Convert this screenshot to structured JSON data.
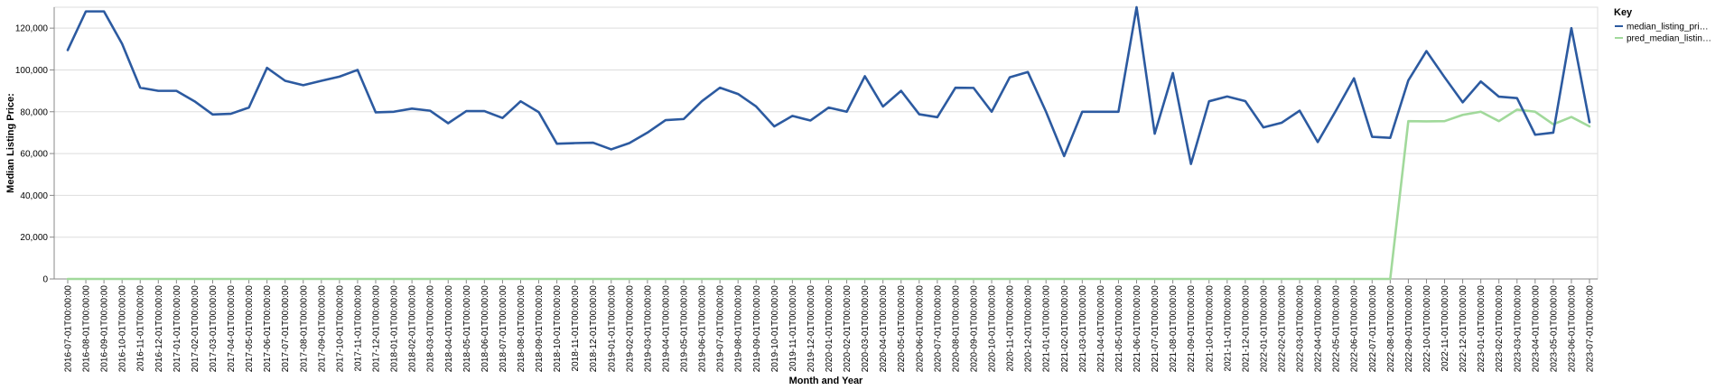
{
  "chart_data": {
    "type": "line",
    "xlabel": "Month and Year",
    "ylabel": "Median Listing Price:",
    "ylim": [
      0,
      130000
    ],
    "yticks": [
      0,
      20000,
      40000,
      60000,
      80000,
      100000,
      120000
    ],
    "ytick_labels": [
      "0",
      "20,000",
      "40,000",
      "60,000",
      "80,000",
      "100,000",
      "120,000"
    ],
    "grid": true,
    "legend_position": "top-right",
    "legend_title": "Key",
    "x": [
      "2016-07-01T00:00:00",
      "2016-08-01T00:00:00",
      "2016-09-01T00:00:00",
      "2016-10-01T00:00:00",
      "2016-11-01T00:00:00",
      "2016-12-01T00:00:00",
      "2017-01-01T00:00:00",
      "2017-02-01T00:00:00",
      "2017-03-01T00:00:00",
      "2017-04-01T00:00:00",
      "2017-05-01T00:00:00",
      "2017-06-01T00:00:00",
      "2017-07-01T00:00:00",
      "2017-08-01T00:00:00",
      "2017-09-01T00:00:00",
      "2017-10-01T00:00:00",
      "2017-11-01T00:00:00",
      "2017-12-01T00:00:00",
      "2018-01-01T00:00:00",
      "2018-02-01T00:00:00",
      "2018-03-01T00:00:00",
      "2018-04-01T00:00:00",
      "2018-05-01T00:00:00",
      "2018-06-01T00:00:00",
      "2018-07-01T00:00:00",
      "2018-08-01T00:00:00",
      "2018-09-01T00:00:00",
      "2018-10-01T00:00:00",
      "2018-11-01T00:00:00",
      "2018-12-01T00:00:00",
      "2019-01-01T00:00:00",
      "2019-02-01T00:00:00",
      "2019-03-01T00:00:00",
      "2019-04-01T00:00:00",
      "2019-05-01T00:00:00",
      "2019-06-01T00:00:00",
      "2019-07-01T00:00:00",
      "2019-08-01T00:00:00",
      "2019-09-01T00:00:00",
      "2019-10-01T00:00:00",
      "2019-11-01T00:00:00",
      "2019-12-01T00:00:00",
      "2020-01-01T00:00:00",
      "2020-02-01T00:00:00",
      "2020-03-01T00:00:00",
      "2020-04-01T00:00:00",
      "2020-05-01T00:00:00",
      "2020-06-01T00:00:00",
      "2020-07-01T00:00:00",
      "2020-08-01T00:00:00",
      "2020-09-01T00:00:00",
      "2020-10-01T00:00:00",
      "2020-11-01T00:00:00",
      "2020-12-01T00:00:00",
      "2021-01-01T00:00:00",
      "2021-02-01T00:00:00",
      "2021-03-01T00:00:00",
      "2021-04-01T00:00:00",
      "2021-05-01T00:00:00",
      "2021-06-01T00:00:00",
      "2021-07-01T00:00:00",
      "2021-08-01T00:00:00",
      "2021-09-01T00:00:00",
      "2021-10-01T00:00:00",
      "2021-11-01T00:00:00",
      "2021-12-01T00:00:00",
      "2022-01-01T00:00:00",
      "2022-02-01T00:00:00",
      "2022-03-01T00:00:00",
      "2022-04-01T00:00:00",
      "2022-05-01T00:00:00",
      "2022-06-01T00:00:00",
      "2022-07-01T00:00:00",
      "2022-08-01T00:00:00",
      "2022-09-01T00:00:00",
      "2022-10-01T00:00:00",
      "2022-11-01T00:00:00",
      "2022-12-01T00:00:00",
      "2023-01-01T00:00:00",
      "2023-02-01T00:00:00",
      "2023-03-01T00:00:00",
      "2023-04-01T00:00:00",
      "2023-05-01T00:00:00",
      "2023-06-01T00:00:00",
      "2023-07-01T00:00:00"
    ],
    "series": [
      {
        "name": "median_listing_pri…",
        "color": "#2c5aa0",
        "values": [
          109500,
          128000,
          128000,
          112500,
          91500,
          90000,
          90000,
          85000,
          78700,
          79000,
          82000,
          101000,
          94800,
          92700,
          94800,
          96800,
          100000,
          79700,
          80000,
          81500,
          80500,
          74500,
          80300,
          80300,
          77000,
          85000,
          79800,
          64700,
          65000,
          65200,
          62000,
          65000,
          70000,
          76000,
          76500,
          85000,
          91500,
          88500,
          82500,
          73000,
          78000,
          75800,
          82000,
          80000,
          97000,
          82500,
          90000,
          78800,
          77400,
          91500,
          91400,
          80000,
          96500,
          99000,
          80000,
          58800,
          80000,
          80000,
          80000,
          130000,
          69500,
          98500,
          55000,
          85000,
          87300,
          85100,
          72500,
          74700,
          80500,
          65500,
          80500,
          96000,
          68000,
          67500,
          95000,
          109000,
          96500,
          84500,
          94500,
          87200,
          86500,
          69000,
          70000,
          120000,
          75000
        ]
      },
      {
        "name": "pred_median_listin…",
        "color": "#a1d99b",
        "values": [
          0,
          0,
          0,
          0,
          0,
          0,
          0,
          0,
          0,
          0,
          0,
          0,
          0,
          0,
          0,
          0,
          0,
          0,
          0,
          0,
          0,
          0,
          0,
          0,
          0,
          0,
          0,
          0,
          0,
          0,
          0,
          0,
          0,
          0,
          0,
          0,
          0,
          0,
          0,
          0,
          0,
          0,
          0,
          0,
          0,
          0,
          0,
          0,
          0,
          0,
          0,
          0,
          0,
          0,
          0,
          0,
          0,
          0,
          0,
          0,
          0,
          0,
          0,
          0,
          0,
          0,
          0,
          0,
          0,
          0,
          0,
          0,
          0,
          0,
          75500,
          75400,
          75500,
          78500,
          80000,
          75500,
          81000,
          80000,
          74000,
          77500,
          73000
        ]
      }
    ]
  }
}
